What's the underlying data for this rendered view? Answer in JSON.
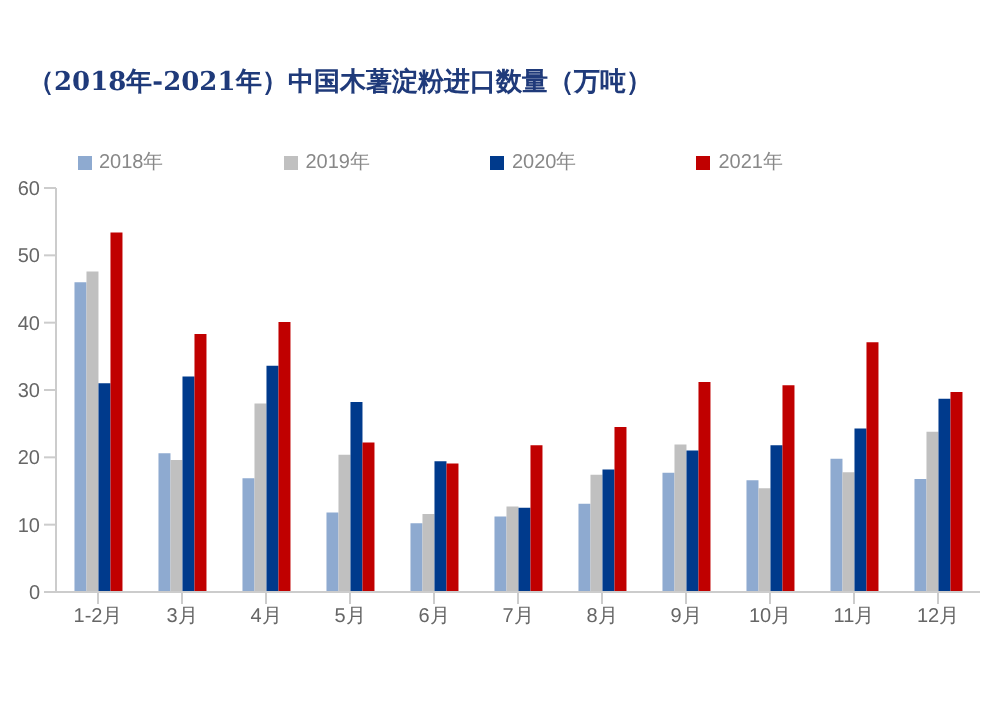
{
  "chart_data": {
    "type": "bar",
    "title": "（2018年-2021年）中国木薯淀粉进口数量（万吨）",
    "categories": [
      "1-2月",
      "3月",
      "4月",
      "5月",
      "6月",
      "7月",
      "8月",
      "9月",
      "10月",
      "11月",
      "12月"
    ],
    "series": [
      {
        "name": "2018年",
        "color": "#8eaad0",
        "values": [
          46,
          20.6,
          16.9,
          11.8,
          10.2,
          11.2,
          13.1,
          17.7,
          16.6,
          19.8,
          16.8
        ]
      },
      {
        "name": "2019年",
        "color": "#c0c0c0",
        "values": [
          47.6,
          19.6,
          28,
          20.4,
          11.6,
          12.7,
          17.4,
          21.9,
          15.4,
          17.8,
          23.8
        ]
      },
      {
        "name": "2020年",
        "color": "#003a8c",
        "values": [
          31,
          32,
          33.6,
          28.2,
          19.4,
          12.5,
          18.2,
          21,
          21.8,
          24.3,
          28.7
        ]
      },
      {
        "name": "2021年",
        "color": "#c00000",
        "values": [
          53.4,
          38.3,
          40.1,
          22.2,
          19.1,
          21.8,
          24.5,
          31.2,
          30.7,
          37.1,
          29.7
        ]
      }
    ],
    "ylim": [
      0,
      60
    ],
    "yticks": [
      0,
      10,
      20,
      30,
      40,
      50,
      60
    ],
    "grid": false,
    "legend": "top"
  }
}
